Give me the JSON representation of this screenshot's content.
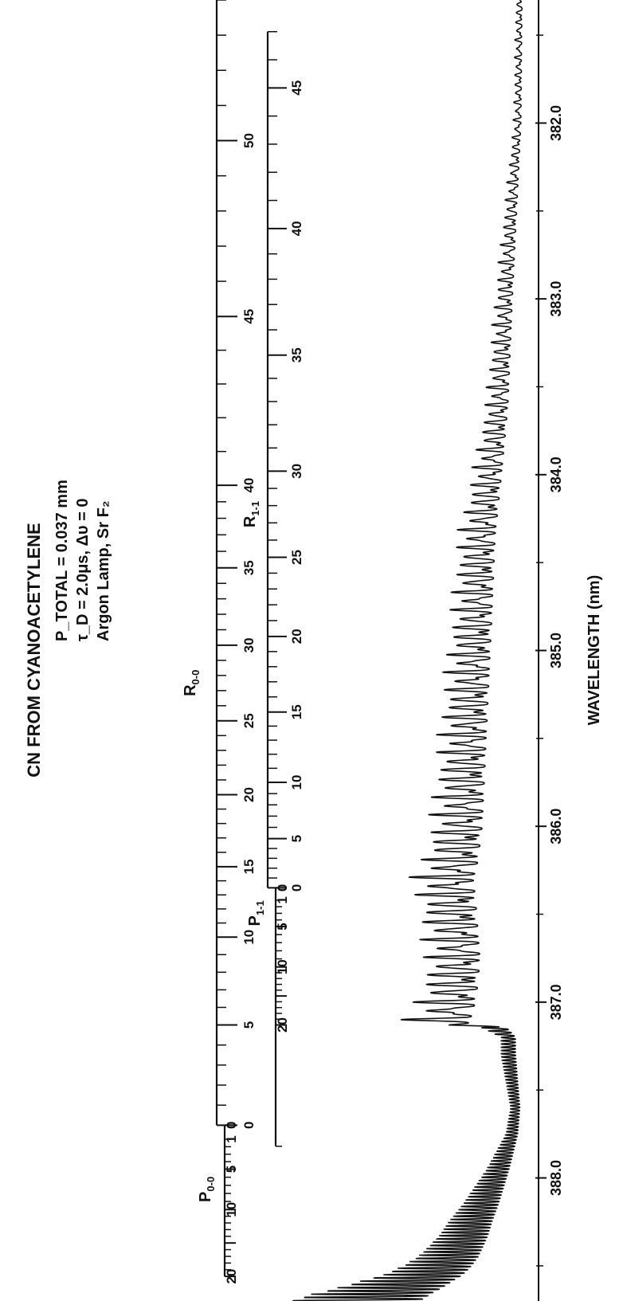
{
  "chart_data": {
    "type": "line",
    "title": "CN FROM CYANOACETYLENE",
    "conditions": [
      "P_TOTAL = 0.037 mm",
      "τ_D = 2.0μs, Δυ = 0",
      "Argon Lamp, Sr F₂"
    ],
    "xlabel": "WAVELENGTH (nm)",
    "ylabel": "",
    "xlim": [
      388.7,
      381.3
    ],
    "x_ticks": [
      388.0,
      387.0,
      386.0,
      385.0,
      384.0,
      383.0,
      382.0
    ],
    "x_tick_labels": [
      "388.0",
      "387.0",
      "386.0",
      "385.0",
      "384.0",
      "383.0",
      "382.0"
    ],
    "grid": false,
    "branch_scales": [
      {
        "name": "P0-0",
        "label_main": "P",
        "label_sub": "0-0",
        "numbers": [
          "20",
          "10",
          "5",
          "1",
          "0"
        ],
        "x": [
          388.56,
          388.18,
          387.95,
          387.78,
          387.7
        ],
        "minor_min": 0,
        "minor_max": 20
      },
      {
        "name": "R0-0",
        "label_main": "R",
        "label_sub": "0-0",
        "numbers": [
          "0",
          "5",
          "10",
          "15",
          "20",
          "25",
          "30",
          "35",
          "40",
          "45",
          "50"
        ],
        "x": [
          387.7,
          387.13,
          386.63,
          386.23,
          385.82,
          385.4,
          384.97,
          384.53,
          384.06,
          383.1,
          382.1
        ],
        "minor_min": 0,
        "minor_max": 55
      },
      {
        "name": "P1-1",
        "label_main": "P",
        "label_sub": "1-1",
        "numbers": [
          "20",
          "10",
          "5",
          "1",
          "0"
        ],
        "x": [
          387.13,
          386.8,
          386.57,
          386.42,
          386.35
        ],
        "minor_min": 0,
        "minor_max": 21
      },
      {
        "name": "R1-1",
        "label_main": "R",
        "label_sub": "1-1",
        "numbers": [
          "0",
          "5",
          "10",
          "15",
          "20",
          "25",
          "30",
          "35",
          "40",
          "45"
        ],
        "x": [
          386.35,
          386.07,
          385.75,
          385.35,
          384.92,
          384.47,
          383.98,
          383.32,
          382.6,
          381.8
        ],
        "minor_min": 0,
        "minor_max": 47
      }
    ],
    "series": [
      {
        "type": "line",
        "x": [
          388.7,
          388.66,
          388.62,
          388.58,
          388.55,
          388.5,
          388.45,
          388.4,
          388.33,
          388.25,
          388.15,
          388.05,
          387.95,
          387.85,
          387.75,
          387.6,
          387.45,
          387.3,
          387.2,
          387.14,
          387.13,
          387.05,
          386.9,
          386.75,
          386.5,
          386.3,
          386.2,
          386.0,
          385.6,
          385.2,
          384.8,
          384.35,
          384.0,
          383.6,
          383.0,
          382.5,
          382.0,
          381.3
        ],
        "y": [
          1.0,
          0.9,
          0.78,
          0.68,
          0.6,
          0.52,
          0.46,
          0.42,
          0.37,
          0.33,
          0.27,
          0.22,
          0.17,
          0.13,
          0.09,
          0.07,
          0.09,
          0.11,
          0.11,
          0.2,
          0.55,
          0.5,
          0.46,
          0.44,
          0.47,
          0.5,
          0.46,
          0.42,
          0.39,
          0.36,
          0.33,
          0.3,
          0.24,
          0.18,
          0.14,
          0.1,
          0.06,
          0.05
        ]
      }
    ]
  }
}
